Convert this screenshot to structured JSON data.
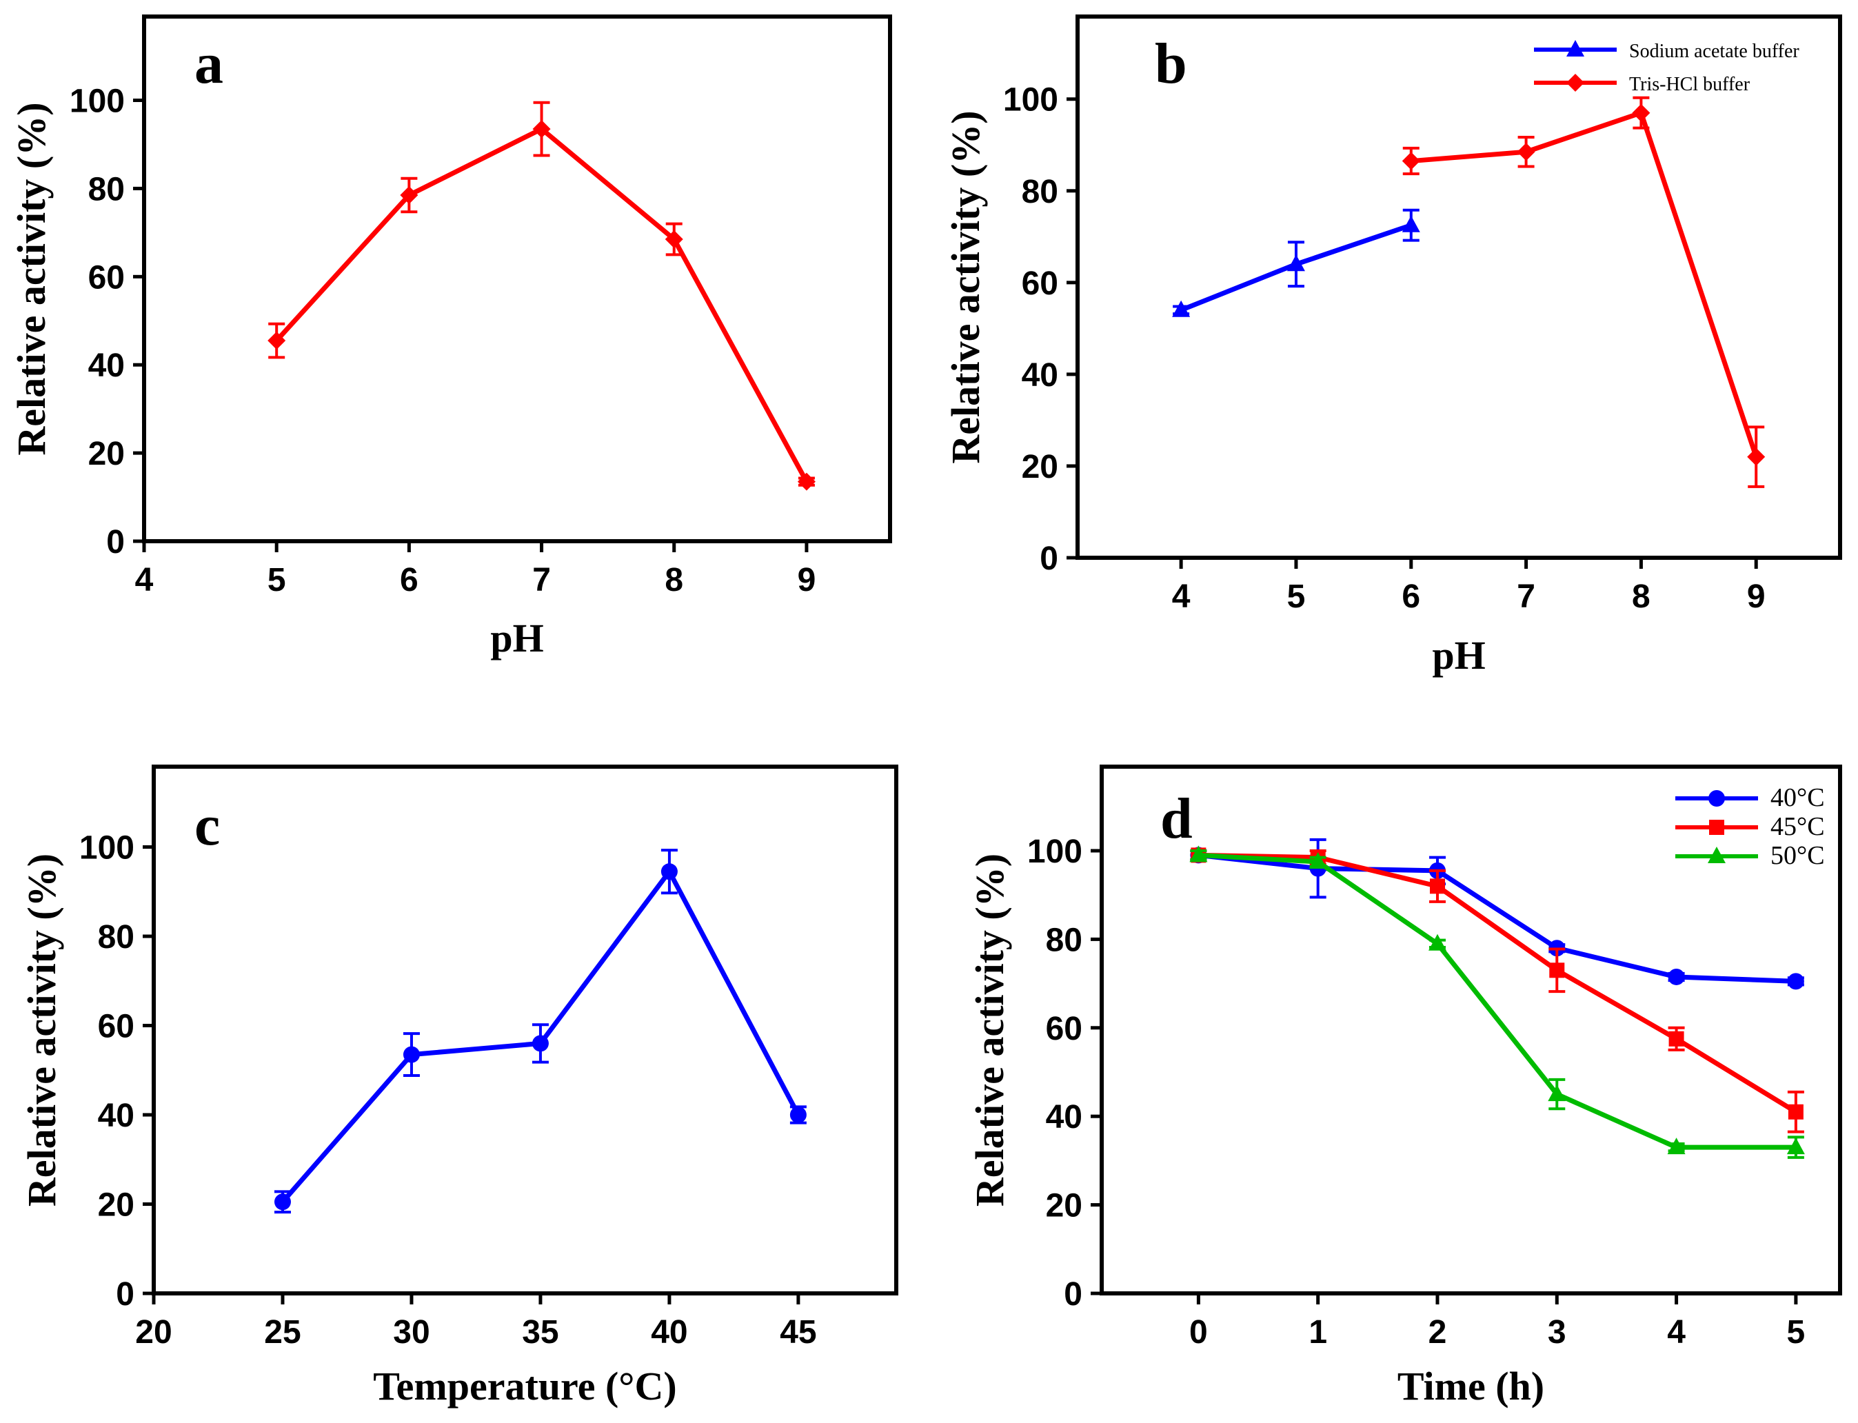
{
  "chart_data": [
    {
      "id": "a",
      "type": "line",
      "panel_label": "a",
      "xlabel": "pH",
      "ylabel": "Relative activity (%)",
      "xlim": [
        4,
        9.63
      ],
      "ylim": [
        0,
        119
      ],
      "xticks": [
        4,
        5,
        6,
        7,
        8,
        9
      ],
      "yticks": [
        0,
        20,
        40,
        60,
        80,
        100
      ],
      "legend": null,
      "series": [
        {
          "name": "",
          "color": "#ff0000",
          "marker": "diamond",
          "x": [
            5,
            6,
            7,
            8,
            9
          ],
          "y": [
            45.5,
            78.5,
            93.5,
            68.5,
            13.5
          ],
          "err": [
            3.8,
            3.8,
            6,
            3.5,
            0.8
          ]
        }
      ]
    },
    {
      "id": "b",
      "type": "line",
      "panel_label": "b",
      "xlabel": "pH",
      "ylabel": "Relative activity (%)",
      "xlim": [
        3.1,
        9.73
      ],
      "ylim": [
        0,
        118
      ],
      "xticks": [
        4,
        5,
        6,
        7,
        8,
        9
      ],
      "yticks": [
        0,
        20,
        40,
        60,
        80,
        100
      ],
      "legend": "top-right",
      "series": [
        {
          "name": "Sodium acetate buffer",
          "color": "#0000ff",
          "marker": "triangle",
          "x": [
            4,
            5,
            6
          ],
          "y": [
            54,
            64,
            72.5
          ],
          "err": [
            0.8,
            4.8,
            3.3
          ]
        },
        {
          "name": "Tris-HCl buffer",
          "color": "#ff0000",
          "marker": "diamond",
          "x": [
            6,
            7,
            8,
            9
          ],
          "y": [
            86.5,
            88.5,
            97,
            22
          ],
          "err": [
            2.8,
            3.2,
            3.3,
            6.5
          ]
        }
      ]
    },
    {
      "id": "c",
      "type": "line",
      "panel_label": "c",
      "xlabel": "Temperature (°C)",
      "ylabel": "Relative activity (%)",
      "xlim": [
        20,
        48.8
      ],
      "ylim": [
        0,
        118
      ],
      "xticks": [
        20,
        25,
        30,
        35,
        40,
        45
      ],
      "yticks": [
        0,
        20,
        40,
        60,
        80,
        100
      ],
      "legend": null,
      "series": [
        {
          "name": "",
          "color": "#0000ff",
          "marker": "circle",
          "x": [
            25,
            30,
            35,
            40,
            45
          ],
          "y": [
            20.5,
            53.5,
            56,
            94.5,
            40
          ],
          "err": [
            2.3,
            4.7,
            4.2,
            4.8,
            1.8
          ]
        }
      ]
    },
    {
      "id": "d",
      "type": "line",
      "panel_label": "d",
      "xlabel": "Time (h)",
      "ylabel": "Relative activity (%)",
      "xlim": [
        -0.81,
        5.37
      ],
      "ylim": [
        0,
        119
      ],
      "xticks": [
        0,
        1,
        2,
        3,
        4,
        5
      ],
      "yticks": [
        0,
        20,
        40,
        60,
        80,
        100
      ],
      "legend": "top-right",
      "series": [
        {
          "name": "40°C",
          "color": "#0000ff",
          "marker": "circle",
          "x": [
            0,
            1,
            2,
            3,
            4,
            5
          ],
          "y": [
            99,
            96,
            95.5,
            78,
            71.5,
            70.5
          ],
          "err": [
            1,
            6.5,
            3,
            0.8,
            0.8,
            0.8
          ]
        },
        {
          "name": "45°C",
          "color": "#ff0000",
          "marker": "square",
          "x": [
            0,
            1,
            2,
            3,
            4,
            5
          ],
          "y": [
            99,
            98.5,
            92,
            73,
            57.5,
            41
          ],
          "err": [
            1,
            1.5,
            3.5,
            4.8,
            2.5,
            4.5
          ]
        },
        {
          "name": "50°C",
          "color": "#00bb00",
          "marker": "triangle",
          "x": [
            0,
            1,
            2,
            3,
            4,
            5
          ],
          "y": [
            99,
            97.5,
            79,
            45,
            33,
            33
          ],
          "err": [
            1,
            1,
            0.8,
            3.3,
            0.8,
            2.3
          ]
        }
      ]
    }
  ]
}
